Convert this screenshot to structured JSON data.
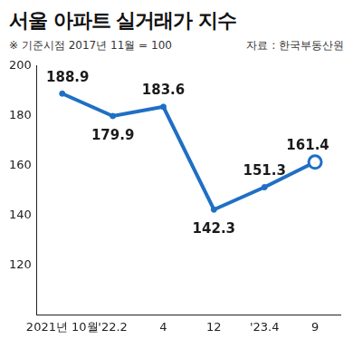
{
  "chart_data": {
    "type": "line",
    "title": "서울 아파트 실거래가 지수",
    "subtitle": "※ 기준시점 2017년 11월 = 100",
    "source": "자료 : 한국부동산원",
    "categories": [
      "2021년 10월",
      "'22.2",
      "4",
      "12",
      "'23.4",
      "9"
    ],
    "values": [
      188.9,
      179.9,
      183.6,
      142.3,
      151.3,
      161.4
    ],
    "color": "#1f6fc5",
    "marker": "circle",
    "ylim": [
      100,
      200
    ],
    "yticks": [
      120,
      140,
      160,
      180,
      200
    ],
    "grid": false,
    "data_labels": true
  }
}
